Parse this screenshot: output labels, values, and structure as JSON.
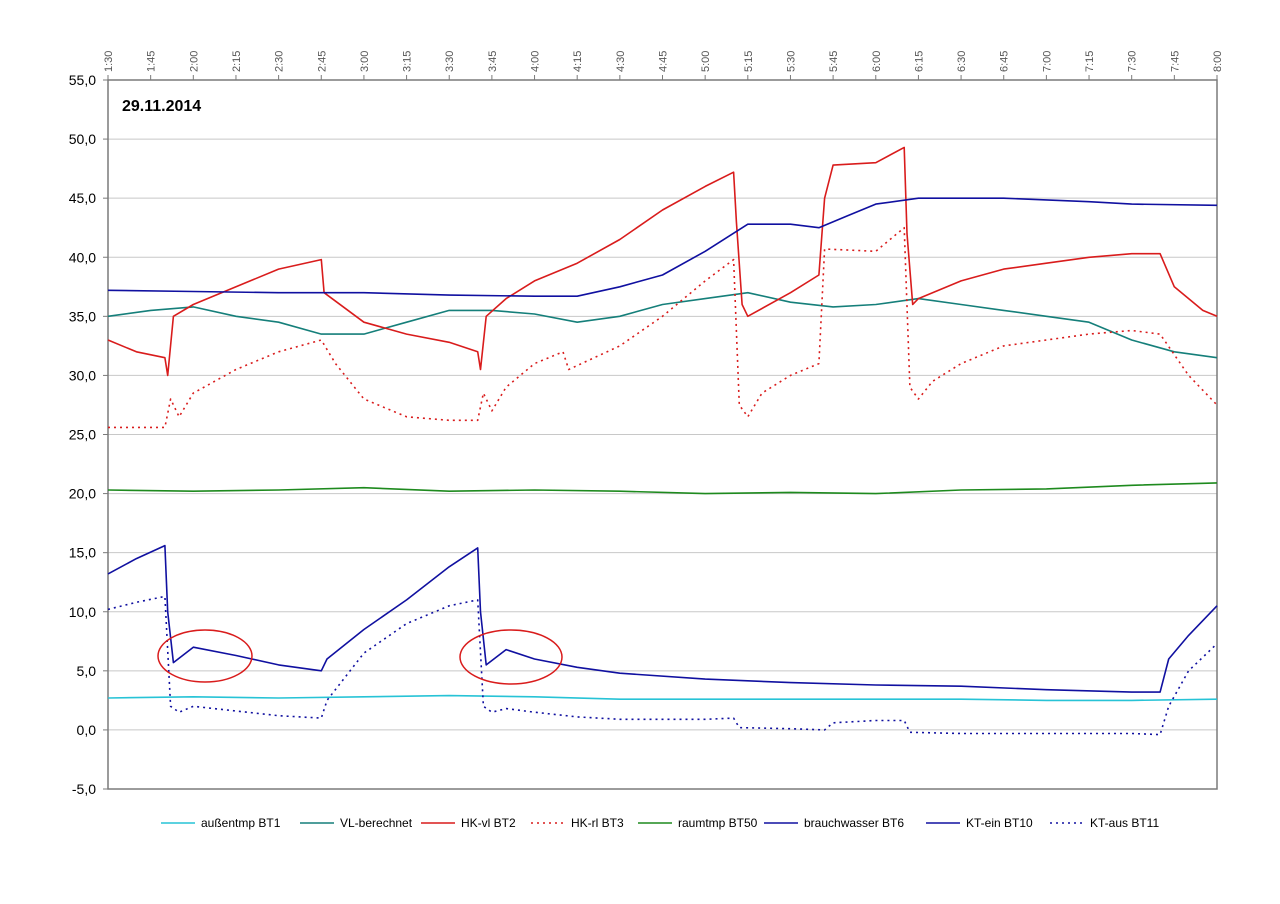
{
  "chart_data": {
    "type": "line",
    "title": "",
    "date_label": "29.11.2014",
    "xlabel": "",
    "ylabel": "",
    "ylim": [
      -5,
      55
    ],
    "yticks": [
      "-5,0",
      "0,0",
      "5,0",
      "10,0",
      "15,0",
      "20,0",
      "25,0",
      "30,0",
      "35,0",
      "40,0",
      "45,0",
      "50,0",
      "55,0"
    ],
    "xlim": [
      "1:30",
      "8:00"
    ],
    "xticks": [
      "1:30",
      "1:45",
      "2:00",
      "2:15",
      "2:30",
      "2:45",
      "3:00",
      "3:15",
      "3:30",
      "3:45",
      "4:00",
      "4:15",
      "4:30",
      "4:45",
      "5:00",
      "5:15",
      "5:30",
      "5:45",
      "6:00",
      "6:15",
      "6:30",
      "6:45",
      "7:00",
      "7:15",
      "7:30",
      "7:45",
      "8:00"
    ],
    "grid": "horizontal",
    "legend_position": "bottom",
    "series": [
      {
        "name": "außentmp BT1",
        "color": "#27c3d6",
        "dash": "solid",
        "points": [
          [
            "1:30",
            2.7
          ],
          [
            "2:00",
            2.8
          ],
          [
            "2:30",
            2.7
          ],
          [
            "3:00",
            2.8
          ],
          [
            "3:30",
            2.9
          ],
          [
            "4:00",
            2.8
          ],
          [
            "4:30",
            2.6
          ],
          [
            "5:00",
            2.6
          ],
          [
            "5:30",
            2.6
          ],
          [
            "6:00",
            2.6
          ],
          [
            "6:30",
            2.6
          ],
          [
            "7:00",
            2.5
          ],
          [
            "7:30",
            2.5
          ],
          [
            "8:00",
            2.6
          ]
        ]
      },
      {
        "name": "VL-berechnet",
        "color": "#157f7a",
        "dash": "solid",
        "points": [
          [
            "1:30",
            35.0
          ],
          [
            "1:45",
            35.5
          ],
          [
            "2:00",
            35.8
          ],
          [
            "2:15",
            35.0
          ],
          [
            "2:30",
            34.5
          ],
          [
            "2:45",
            33.5
          ],
          [
            "3:00",
            33.5
          ],
          [
            "3:15",
            34.5
          ],
          [
            "3:30",
            35.5
          ],
          [
            "3:45",
            35.5
          ],
          [
            "4:00",
            35.2
          ],
          [
            "4:15",
            34.5
          ],
          [
            "4:30",
            35.0
          ],
          [
            "4:45",
            36.0
          ],
          [
            "5:00",
            36.5
          ],
          [
            "5:15",
            37.0
          ],
          [
            "5:30",
            36.2
          ],
          [
            "5:45",
            35.8
          ],
          [
            "6:00",
            36.0
          ],
          [
            "6:15",
            36.5
          ],
          [
            "6:30",
            36.0
          ],
          [
            "6:45",
            35.5
          ],
          [
            "7:00",
            35.0
          ],
          [
            "7:15",
            34.5
          ],
          [
            "7:30",
            33.0
          ],
          [
            "7:45",
            32.0
          ],
          [
            "8:00",
            31.5
          ]
        ]
      },
      {
        "name": "HK-vl BT2",
        "color": "#d91c1c",
        "dash": "solid",
        "points": [
          [
            "1:30",
            33.0
          ],
          [
            "1:40",
            32.0
          ],
          [
            "1:50",
            31.5
          ],
          [
            "1:51",
            30.0
          ],
          [
            "1:53",
            35.0
          ],
          [
            "2:00",
            36.0
          ],
          [
            "2:15",
            37.5
          ],
          [
            "2:30",
            39.0
          ],
          [
            "2:45",
            39.8
          ],
          [
            "2:46",
            37.0
          ],
          [
            "3:00",
            34.5
          ],
          [
            "3:15",
            33.5
          ],
          [
            "3:30",
            32.8
          ],
          [
            "3:40",
            32.0
          ],
          [
            "3:41",
            30.5
          ],
          [
            "3:43",
            35.0
          ],
          [
            "3:50",
            36.5
          ],
          [
            "4:00",
            38.0
          ],
          [
            "4:15",
            39.5
          ],
          [
            "4:30",
            41.5
          ],
          [
            "4:45",
            44.0
          ],
          [
            "5:00",
            46.0
          ],
          [
            "5:10",
            47.2
          ],
          [
            "5:11",
            43.0
          ],
          [
            "5:13",
            36.0
          ],
          [
            "5:15",
            35.0
          ],
          [
            "5:30",
            37.0
          ],
          [
            "5:40",
            38.5
          ],
          [
            "5:42",
            45.0
          ],
          [
            "5:45",
            47.8
          ],
          [
            "6:00",
            48.0
          ],
          [
            "6:10",
            49.3
          ],
          [
            "6:11",
            42.0
          ],
          [
            "6:13",
            36.0
          ],
          [
            "6:15",
            36.5
          ],
          [
            "6:30",
            38.0
          ],
          [
            "6:45",
            39.0
          ],
          [
            "7:00",
            39.5
          ],
          [
            "7:15",
            40.0
          ],
          [
            "7:30",
            40.3
          ],
          [
            "7:40",
            40.3
          ],
          [
            "7:45",
            37.5
          ],
          [
            "7:55",
            35.5
          ],
          [
            "8:00",
            35.0
          ]
        ]
      },
      {
        "name": "HK-rl BT3",
        "color": "#d91c1c",
        "dash": "dotted",
        "points": [
          [
            "1:30",
            25.6
          ],
          [
            "1:50",
            25.6
          ],
          [
            "1:52",
            28.0
          ],
          [
            "1:55",
            26.5
          ],
          [
            "2:00",
            28.5
          ],
          [
            "2:15",
            30.5
          ],
          [
            "2:30",
            32.0
          ],
          [
            "2:45",
            33.0
          ],
          [
            "2:50",
            31.0
          ],
          [
            "3:00",
            28.0
          ],
          [
            "3:15",
            26.5
          ],
          [
            "3:30",
            26.2
          ],
          [
            "3:40",
            26.2
          ],
          [
            "3:42",
            28.5
          ],
          [
            "3:45",
            27.0
          ],
          [
            "3:50",
            29.0
          ],
          [
            "4:00",
            31.0
          ],
          [
            "4:10",
            32.0
          ],
          [
            "4:12",
            30.5
          ],
          [
            "4:30",
            32.5
          ],
          [
            "4:45",
            35.0
          ],
          [
            "5:00",
            38.0
          ],
          [
            "5:10",
            39.8
          ],
          [
            "5:12",
            27.5
          ],
          [
            "5:15",
            26.5
          ],
          [
            "5:20",
            28.5
          ],
          [
            "5:30",
            30.0
          ],
          [
            "5:40",
            31.0
          ],
          [
            "5:42",
            40.7
          ],
          [
            "6:00",
            40.5
          ],
          [
            "6:10",
            42.5
          ],
          [
            "6:12",
            29.0
          ],
          [
            "6:15",
            28.0
          ],
          [
            "6:20",
            29.5
          ],
          [
            "6:30",
            31.0
          ],
          [
            "6:45",
            32.5
          ],
          [
            "7:00",
            33.0
          ],
          [
            "7:15",
            33.5
          ],
          [
            "7:30",
            33.8
          ],
          [
            "7:40",
            33.5
          ],
          [
            "7:50",
            30.0
          ],
          [
            "8:00",
            27.5
          ]
        ]
      },
      {
        "name": "raumtmp BT50",
        "color": "#1e8a1e",
        "dash": "solid",
        "points": [
          [
            "1:30",
            20.3
          ],
          [
            "2:00",
            20.2
          ],
          [
            "2:30",
            20.3
          ],
          [
            "3:00",
            20.5
          ],
          [
            "3:30",
            20.2
          ],
          [
            "4:00",
            20.3
          ],
          [
            "4:30",
            20.2
          ],
          [
            "5:00",
            20.0
          ],
          [
            "5:30",
            20.1
          ],
          [
            "6:00",
            20.0
          ],
          [
            "6:30",
            20.3
          ],
          [
            "7:00",
            20.4
          ],
          [
            "7:30",
            20.7
          ],
          [
            "8:00",
            20.9
          ]
        ]
      },
      {
        "name": "brauchwasser BT6",
        "color": "#1010a0",
        "dash": "solid",
        "points": [
          [
            "1:30",
            37.2
          ],
          [
            "2:00",
            37.1
          ],
          [
            "2:30",
            37.0
          ],
          [
            "3:00",
            37.0
          ],
          [
            "3:30",
            36.8
          ],
          [
            "4:00",
            36.7
          ],
          [
            "4:15",
            36.7
          ],
          [
            "4:30",
            37.5
          ],
          [
            "4:45",
            38.5
          ],
          [
            "5:00",
            40.5
          ],
          [
            "5:15",
            42.8
          ],
          [
            "5:30",
            42.8
          ],
          [
            "5:40",
            42.5
          ],
          [
            "5:50",
            43.5
          ],
          [
            "6:00",
            44.5
          ],
          [
            "6:15",
            45.0
          ],
          [
            "6:45",
            45.0
          ],
          [
            "7:15",
            44.7
          ],
          [
            "7:30",
            44.5
          ],
          [
            "8:00",
            44.4
          ]
        ]
      },
      {
        "name": "KT-ein BT10",
        "color": "#1010a0",
        "dash": "solid",
        "points": [
          [
            "1:30",
            13.2
          ],
          [
            "1:40",
            14.5
          ],
          [
            "1:50",
            15.6
          ],
          [
            "1:51",
            10.0
          ],
          [
            "1:53",
            5.7
          ],
          [
            "2:00",
            7.0
          ],
          [
            "2:15",
            6.3
          ],
          [
            "2:30",
            5.5
          ],
          [
            "2:45",
            5.0
          ],
          [
            "2:47",
            6.0
          ],
          [
            "3:00",
            8.5
          ],
          [
            "3:15",
            11.0
          ],
          [
            "3:30",
            13.8
          ],
          [
            "3:40",
            15.4
          ],
          [
            "3:41",
            10.0
          ],
          [
            "3:43",
            5.5
          ],
          [
            "3:50",
            6.8
          ],
          [
            "4:00",
            6.0
          ],
          [
            "4:15",
            5.3
          ],
          [
            "4:30",
            4.8
          ],
          [
            "5:00",
            4.3
          ],
          [
            "5:30",
            4.0
          ],
          [
            "6:00",
            3.8
          ],
          [
            "6:30",
            3.7
          ],
          [
            "7:00",
            3.4
          ],
          [
            "7:30",
            3.2
          ],
          [
            "7:40",
            3.2
          ],
          [
            "7:43",
            6.0
          ],
          [
            "7:50",
            8.0
          ],
          [
            "8:00",
            10.5
          ]
        ]
      },
      {
        "name": "KT-aus BT11",
        "color": "#1010a0",
        "dash": "dotted",
        "points": [
          [
            "1:30",
            10.2
          ],
          [
            "1:40",
            10.8
          ],
          [
            "1:50",
            11.3
          ],
          [
            "1:52",
            2.0
          ],
          [
            "1:55",
            1.5
          ],
          [
            "2:00",
            2.0
          ],
          [
            "2:15",
            1.6
          ],
          [
            "2:30",
            1.2
          ],
          [
            "2:45",
            1.0
          ],
          [
            "2:47",
            2.5
          ],
          [
            "3:00",
            6.5
          ],
          [
            "3:15",
            9.0
          ],
          [
            "3:30",
            10.5
          ],
          [
            "3:40",
            11.0
          ],
          [
            "3:42",
            2.0
          ],
          [
            "3:45",
            1.5
          ],
          [
            "3:50",
            1.8
          ],
          [
            "4:00",
            1.5
          ],
          [
            "4:15",
            1.1
          ],
          [
            "4:30",
            0.9
          ],
          [
            "5:00",
            0.9
          ],
          [
            "5:10",
            1.0
          ],
          [
            "5:12",
            0.2
          ],
          [
            "5:30",
            0.1
          ],
          [
            "5:42",
            0.0
          ],
          [
            "5:45",
            0.6
          ],
          [
            "6:00",
            0.8
          ],
          [
            "6:10",
            0.8
          ],
          [
            "6:12",
            -0.2
          ],
          [
            "6:30",
            -0.3
          ],
          [
            "7:00",
            -0.3
          ],
          [
            "7:30",
            -0.3
          ],
          [
            "7:40",
            -0.4
          ],
          [
            "7:43",
            2.0
          ],
          [
            "7:50",
            5.0
          ],
          [
            "8:00",
            7.3
          ]
        ]
      }
    ]
  }
}
